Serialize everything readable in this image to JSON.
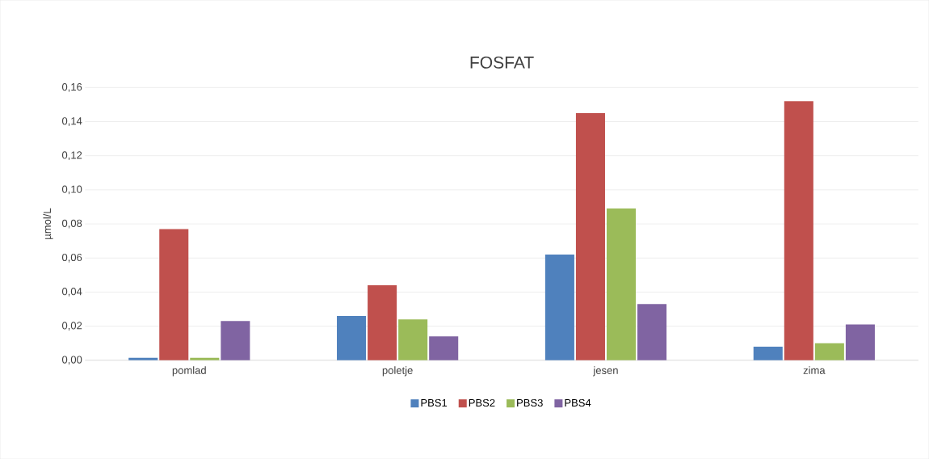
{
  "chart_data": {
    "type": "bar",
    "title": "FOSFAT",
    "ylabel": "µmol/L",
    "categories": [
      "pomlad",
      "poletje",
      "jesen",
      "zima"
    ],
    "series": [
      {
        "name": "PBS1",
        "color": "#4f81bd",
        "values": [
          0.0015,
          0.026,
          0.062,
          0.008
        ]
      },
      {
        "name": "PBS2",
        "color": "#c0504d",
        "values": [
          0.077,
          0.044,
          0.145,
          0.152
        ]
      },
      {
        "name": "PBS3",
        "color": "#9bbb59",
        "values": [
          0.0015,
          0.024,
          0.089,
          0.01
        ]
      },
      {
        "name": "PBS4",
        "color": "#8064a2",
        "values": [
          0.023,
          0.014,
          0.033,
          0.021
        ]
      }
    ],
    "ylim": [
      0,
      0.16
    ],
    "yticks": [
      {
        "value": 0,
        "label": "0,00"
      },
      {
        "value": 0.02,
        "label": "0,02"
      },
      {
        "value": 0.04,
        "label": "0,04"
      },
      {
        "value": 0.06,
        "label": "0,06"
      },
      {
        "value": 0.08,
        "label": "0,08"
      },
      {
        "value": 0.1,
        "label": "0,10"
      },
      {
        "value": 0.12,
        "label": "0,12"
      },
      {
        "value": 0.14,
        "label": "0,14"
      },
      {
        "value": 0.16,
        "label": "0,16"
      }
    ],
    "grid": "y",
    "legend": "bottom"
  }
}
